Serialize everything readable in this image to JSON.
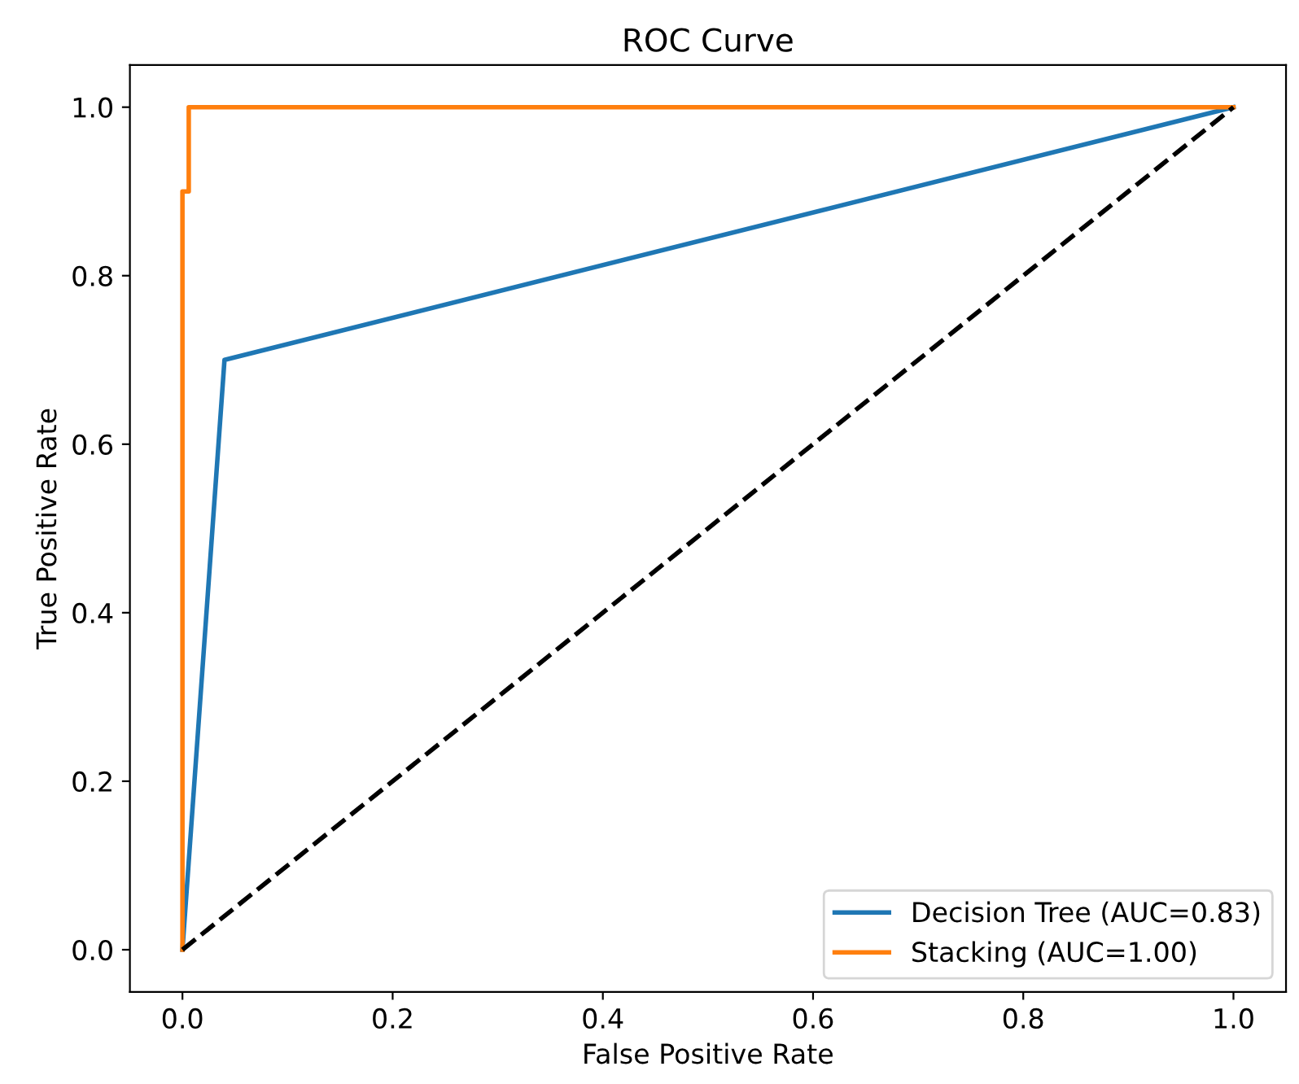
{
  "chart_data": {
    "type": "line",
    "title": "ROC Curve",
    "xlabel": "False Positive Rate",
    "ylabel": "True Positive Rate",
    "xlim": [
      -0.05,
      1.05
    ],
    "ylim": [
      -0.05,
      1.05
    ],
    "xticks": [
      {
        "value": 0,
        "label": "0.0"
      },
      0.2,
      0.4,
      0.6,
      0.8,
      {
        "value": 1,
        "label": "1.0"
      }
    ],
    "yticks": [
      {
        "value": 0,
        "label": "0.0"
      },
      0.2,
      0.4,
      0.6,
      0.8,
      {
        "value": 1,
        "label": "1.0"
      }
    ],
    "grid": false,
    "legend": "bottom right",
    "marker": "none",
    "series": [
      {
        "name": "Decision Tree (AUC=0.83)",
        "color": "#1f77b4",
        "x": [
          0,
          0.04,
          1
        ],
        "values": [
          0,
          0.7,
          1
        ],
        "line_style": "solid"
      },
      {
        "name": "Stacking (AUC=1.00)",
        "color": "#ff7f0e",
        "x": [
          0,
          0,
          0.006,
          0.006,
          1
        ],
        "values": [
          0,
          0.9,
          0.9,
          1,
          1
        ],
        "line_style": "solid"
      },
      {
        "color": "#000000",
        "x": [
          0,
          1
        ],
        "values": [
          0,
          1
        ],
        "line_style": "dashed"
      }
    ]
  }
}
